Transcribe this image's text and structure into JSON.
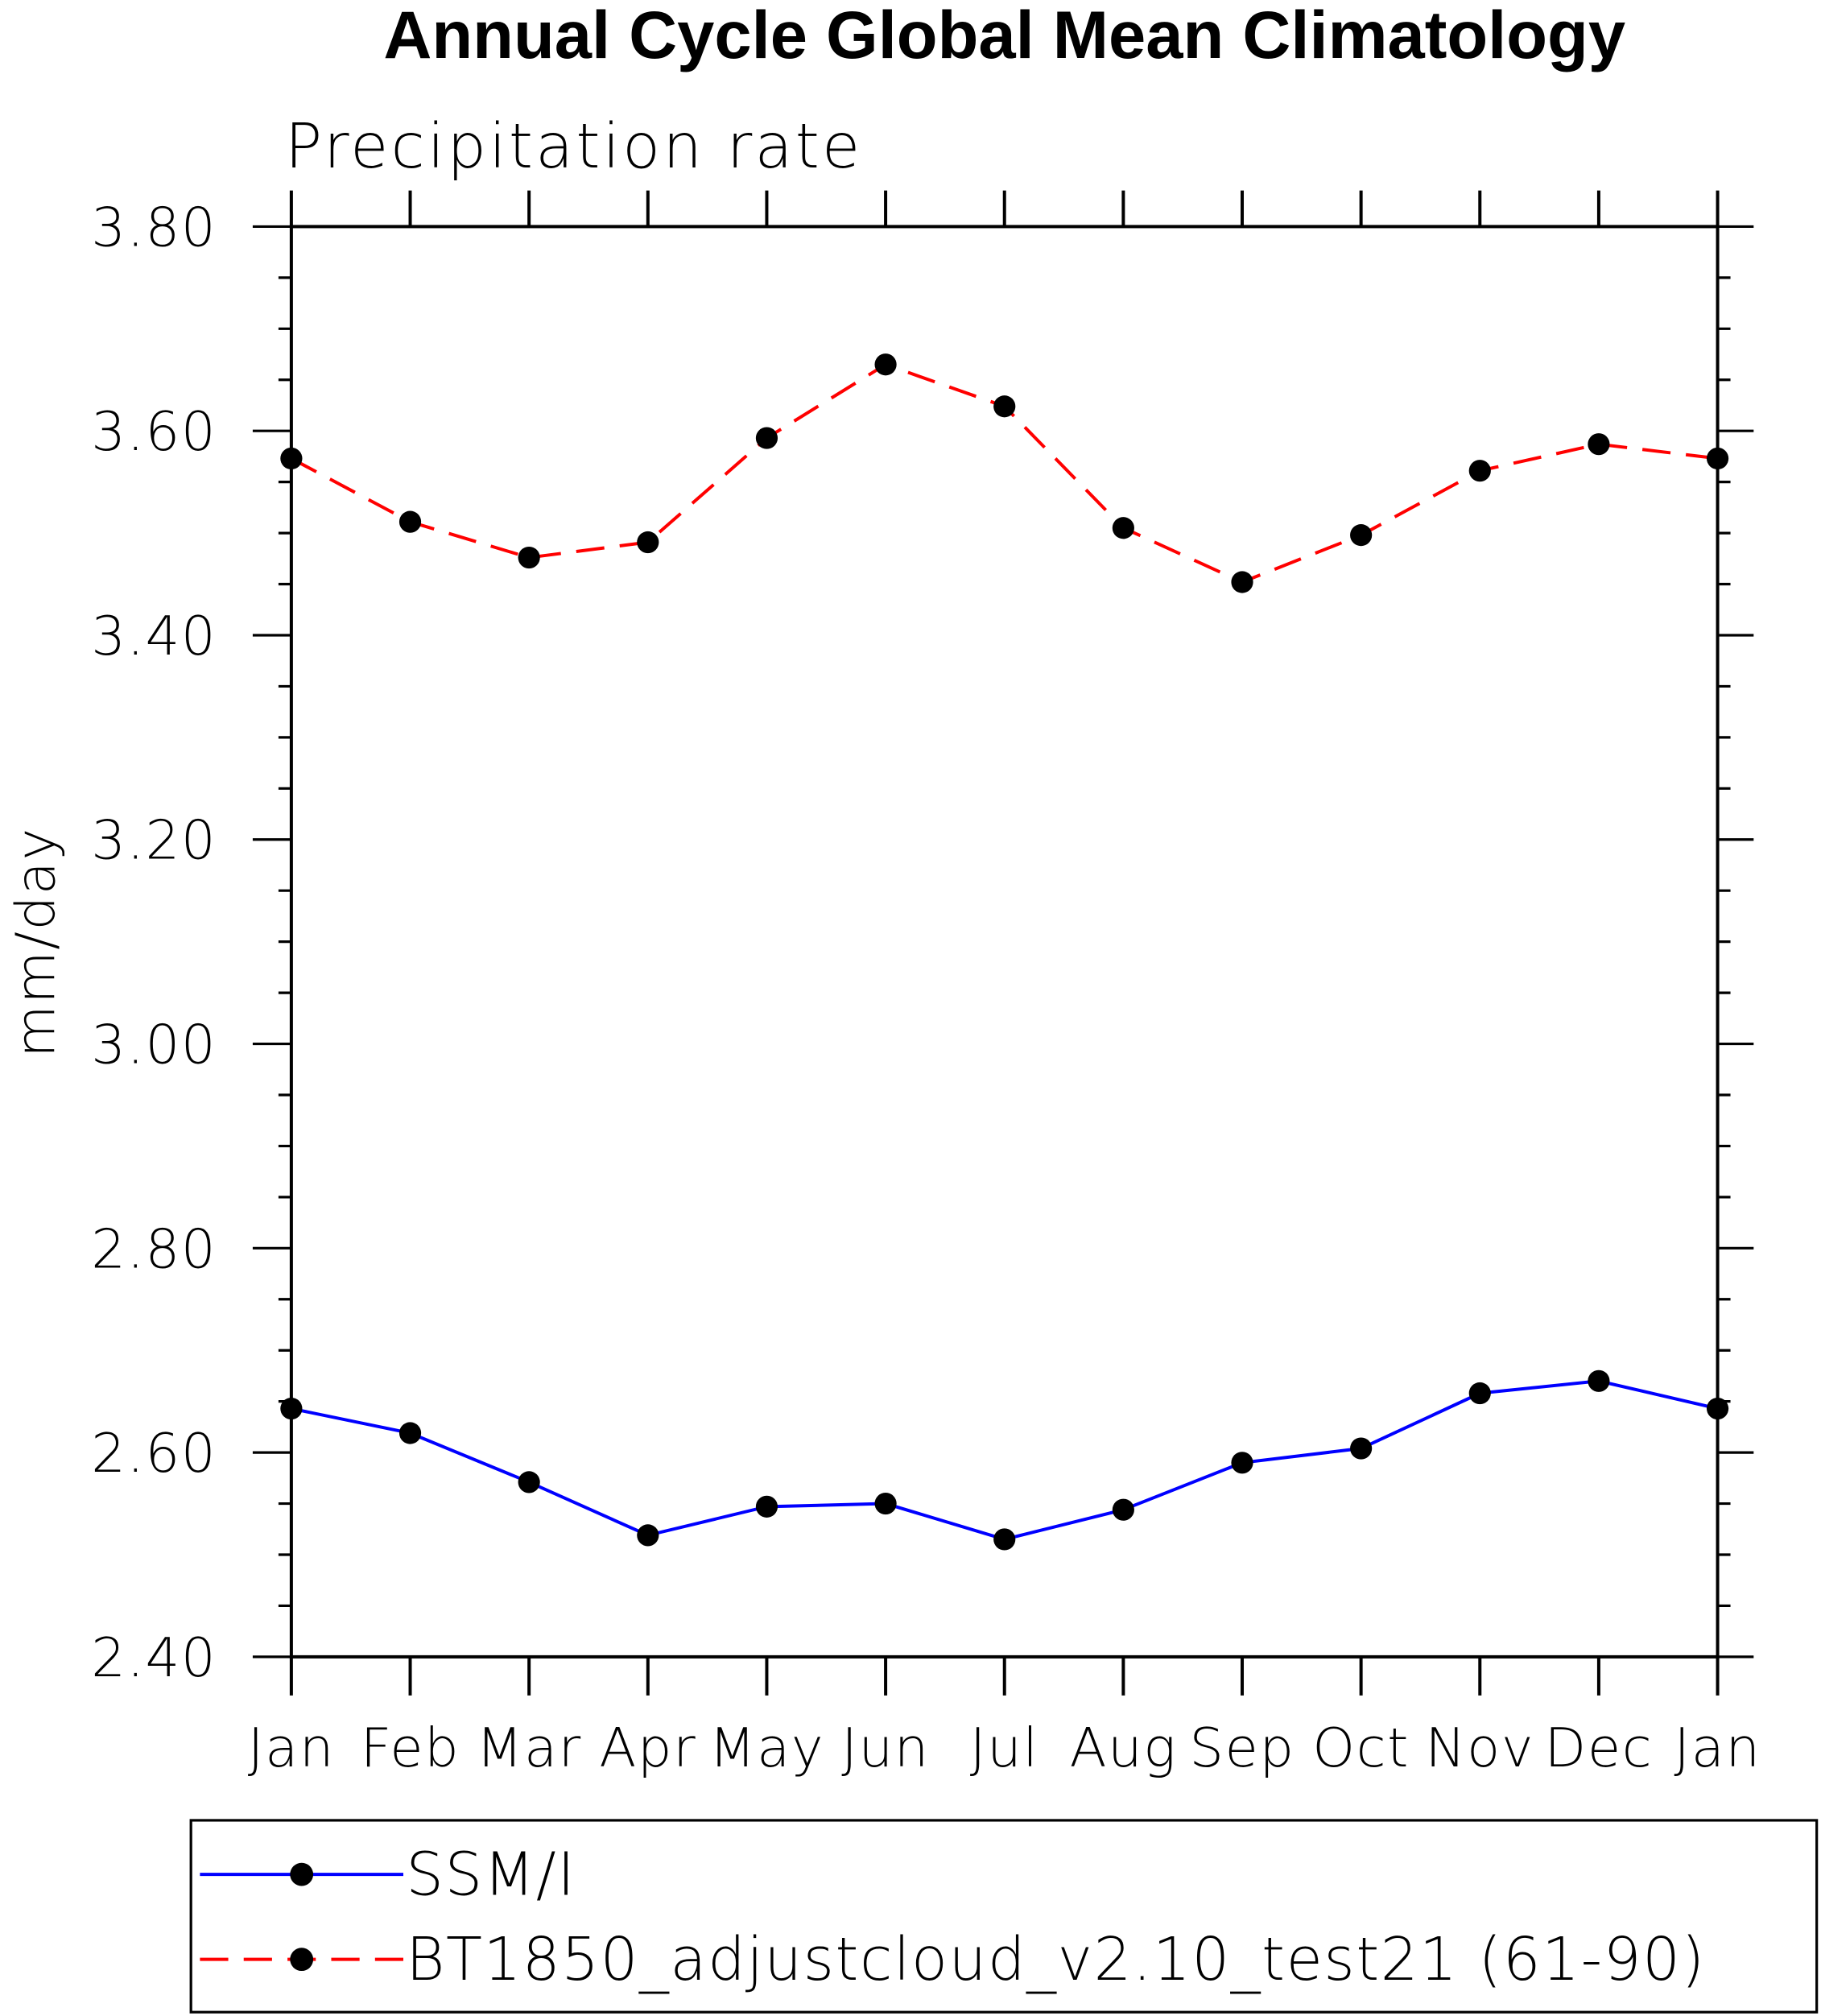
{
  "chart_data": {
    "type": "line",
    "title": "Annual Cycle Global Mean Climatology",
    "subtitle": "Precipitation rate",
    "xlabel": "",
    "ylabel": "mm/day",
    "categories": [
      "Jan",
      "Feb",
      "Mar",
      "Apr",
      "May",
      "Jun",
      "Jul",
      "Aug",
      "Sep",
      "Oct",
      "Nov",
      "Dec",
      "Jan"
    ],
    "ylim": [
      2.4,
      3.8
    ],
    "yticks": [
      "2.40",
      "2.60",
      "2.80",
      "3.00",
      "3.20",
      "3.40",
      "3.60",
      "3.80"
    ],
    "ymajor_step": 0.2,
    "yminor_step": 0.05,
    "grid": false,
    "legend_position": "bottom",
    "series": [
      {
        "name": "SSM/I",
        "color": "#0000ff",
        "dash": "solid",
        "values": [
          2.643,
          2.619,
          2.571,
          2.519,
          2.547,
          2.55,
          2.515,
          2.544,
          2.59,
          2.604,
          2.658,
          2.67,
          2.643
        ]
      },
      {
        "name": "BT1850_adjustcloud_v2.10_test21 (61-90)",
        "color": "#ff0000",
        "dash": "dashed",
        "values": [
          3.573,
          3.511,
          3.476,
          3.491,
          3.593,
          3.665,
          3.624,
          3.505,
          3.452,
          3.498,
          3.561,
          3.587,
          3.573
        ]
      }
    ]
  }
}
